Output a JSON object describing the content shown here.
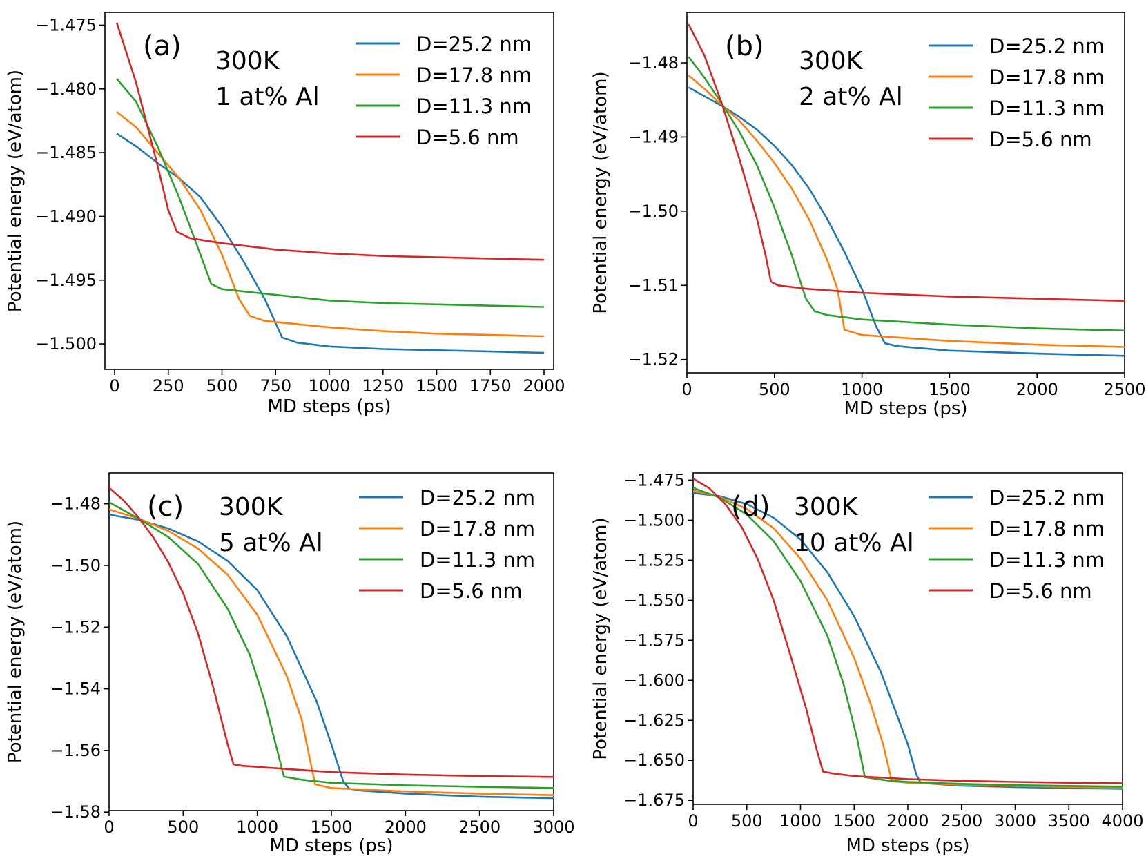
{
  "colors": {
    "D=25.2 nm": "#1f77b4",
    "D=17.8 nm": "#ff7f0e",
    "D=11.3 nm": "#2ca02c",
    "D=5.6 nm": "#d62728"
  },
  "chart_data": [
    {
      "type": "line",
      "panel_label": "(a)",
      "annotation": [
        "300K",
        "1 at% Al"
      ],
      "xlabel": "MD steps (ps)",
      "ylabel": "Potential energy (eV/atom)",
      "xlim": [
        -45,
        2045
      ],
      "ylim": [
        -1.502,
        -1.474
      ],
      "xticks": [
        0,
        250,
        500,
        750,
        1000,
        1250,
        1500,
        1750,
        2000
      ],
      "xtick_labels": [
        "0",
        "250",
        "500",
        "750",
        "1000",
        "1250",
        "1500",
        "1750",
        "2000"
      ],
      "yticks": [
        -1.475,
        -1.48,
        -1.485,
        -1.49,
        -1.495,
        -1.5
      ],
      "ytick_labels": [
        "−1.475",
        "−1.480",
        "−1.485",
        "−1.490",
        "−1.495",
        "−1.500"
      ],
      "legend": [
        "D=25.2 nm",
        "D=17.8 nm",
        "D=11.3 nm",
        "D=5.6 nm"
      ],
      "legend_position": "top-right",
      "series": [
        {
          "name": "D=25.2 nm",
          "color": "#1f77b4",
          "x": [
            10,
            100,
            200,
            300,
            400,
            500,
            600,
            700,
            780,
            850,
            1000,
            1250,
            1500,
            1750,
            2000
          ],
          "values": [
            -1.4835,
            -1.4845,
            -1.4858,
            -1.487,
            -1.4885,
            -1.4908,
            -1.4935,
            -1.4965,
            -1.4995,
            -1.4999,
            -1.5002,
            -1.5004,
            -1.5005,
            -1.5006,
            -1.5007
          ]
        },
        {
          "name": "D=17.8 nm",
          "color": "#ff7f0e",
          "x": [
            10,
            100,
            200,
            300,
            400,
            500,
            580,
            630,
            700,
            1000,
            1250,
            1500,
            1750,
            2000
          ],
          "values": [
            -1.4818,
            -1.483,
            -1.485,
            -1.487,
            -1.4895,
            -1.493,
            -1.4965,
            -1.4978,
            -1.4982,
            -1.4987,
            -1.499,
            -1.4992,
            -1.4993,
            -1.4994
          ]
        },
        {
          "name": "D=11.3 nm",
          "color": "#2ca02c",
          "x": [
            10,
            100,
            200,
            300,
            400,
            450,
            500,
            1000,
            1250,
            1500,
            1750,
            2000
          ],
          "values": [
            -1.4792,
            -1.481,
            -1.4845,
            -1.4885,
            -1.493,
            -1.4953,
            -1.4957,
            -1.4966,
            -1.4968,
            -1.4969,
            -1.497,
            -1.4971
          ]
        },
        {
          "name": "D=5.6 nm",
          "color": "#d62728",
          "x": [
            10,
            100,
            200,
            250,
            290,
            350,
            500,
            750,
            1000,
            1250,
            1500,
            1750,
            2000
          ],
          "values": [
            -1.4748,
            -1.4795,
            -1.486,
            -1.4895,
            -1.4912,
            -1.4917,
            -1.4921,
            -1.4926,
            -1.4929,
            -1.4931,
            -1.4932,
            -1.4933,
            -1.4934
          ]
        }
      ]
    },
    {
      "type": "line",
      "panel_label": "(b)",
      "annotation": [
        "300K",
        "2 at% Al"
      ],
      "xlabel": "MD steps (ps)",
      "ylabel": "Potential energy (eV/atom)",
      "xlim": [
        0,
        2500
      ],
      "ylim": [
        -1.5218,
        -1.4732
      ],
      "xticks": [
        0,
        500,
        1000,
        1500,
        2000,
        2500
      ],
      "xtick_labels": [
        "0",
        "500",
        "1000",
        "1500",
        "2000",
        "2500"
      ],
      "yticks": [
        -1.48,
        -1.49,
        -1.5,
        -1.51,
        -1.52
      ],
      "ytick_labels": [
        "−1.48",
        "−1.49",
        "−1.50",
        "−1.51",
        "−1.52"
      ],
      "legend": [
        "D=25.2 nm",
        "D=17.8 nm",
        "D=11.3 nm",
        "D=5.6 nm"
      ],
      "legend_position": "top-right",
      "series": [
        {
          "name": "D=25.2 nm",
          "color": "#1f77b4",
          "x": [
            10,
            100,
            200,
            300,
            400,
            500,
            600,
            700,
            800,
            900,
            1000,
            1080,
            1130,
            1200,
            1500,
            2000,
            2500
          ],
          "values": [
            -1.4833,
            -1.4845,
            -1.4858,
            -1.4873,
            -1.489,
            -1.4912,
            -1.4938,
            -1.497,
            -1.501,
            -1.5055,
            -1.5105,
            -1.5155,
            -1.5178,
            -1.5182,
            -1.5188,
            -1.5192,
            -1.5195
          ]
        },
        {
          "name": "D=17.8 nm",
          "color": "#ff7f0e",
          "x": [
            10,
            100,
            200,
            300,
            400,
            500,
            600,
            700,
            800,
            860,
            900,
            1000,
            1500,
            2000,
            2500
          ],
          "values": [
            -1.4817,
            -1.4835,
            -1.4857,
            -1.4878,
            -1.4905,
            -1.4935,
            -1.497,
            -1.5012,
            -1.5065,
            -1.5105,
            -1.516,
            -1.5167,
            -1.5175,
            -1.518,
            -1.5183
          ]
        },
        {
          "name": "D=11.3 nm",
          "color": "#2ca02c",
          "x": [
            10,
            100,
            200,
            300,
            400,
            500,
            600,
            680,
            730,
            800,
            1000,
            1500,
            2000,
            2500
          ],
          "values": [
            -1.4792,
            -1.482,
            -1.4855,
            -1.4893,
            -1.4938,
            -1.4995,
            -1.506,
            -1.5118,
            -1.5135,
            -1.514,
            -1.5146,
            -1.5153,
            -1.5158,
            -1.5161
          ]
        },
        {
          "name": "D=5.6 nm",
          "color": "#d62728",
          "x": [
            10,
            100,
            200,
            300,
            400,
            450,
            480,
            520,
            700,
            1000,
            1500,
            2000,
            2500
          ],
          "values": [
            -1.4748,
            -1.479,
            -1.4855,
            -1.493,
            -1.501,
            -1.506,
            -1.5095,
            -1.51,
            -1.5105,
            -1.511,
            -1.5115,
            -1.5118,
            -1.5121
          ]
        }
      ]
    },
    {
      "type": "line",
      "panel_label": "(c)",
      "annotation": [
        "300K",
        "5 at% Al"
      ],
      "xlabel": "MD steps (ps)",
      "ylabel": "Potential energy (eV/atom)",
      "xlim": [
        0,
        3000
      ],
      "ylim": [
        -1.5795,
        -1.47
      ],
      "xticks": [
        0,
        500,
        1000,
        1500,
        2000,
        2500,
        3000
      ],
      "xtick_labels": [
        "0",
        "500",
        "1000",
        "1500",
        "2000",
        "2500",
        "3000"
      ],
      "yticks": [
        -1.48,
        -1.5,
        -1.52,
        -1.54,
        -1.56,
        -1.58
      ],
      "ytick_labels": [
        "−1.48",
        "−1.50",
        "−1.52",
        "−1.54",
        "−1.56",
        "−1.58"
      ],
      "legend": [
        "D=25.2 nm",
        "D=17.8 nm",
        "D=11.3 nm",
        "D=5.6 nm"
      ],
      "legend_position": "top-right",
      "series": [
        {
          "name": "D=25.2 nm",
          "color": "#1f77b4",
          "x": [
            0,
            200,
            400,
            600,
            800,
            1000,
            1200,
            1400,
            1500,
            1580,
            1620,
            1700,
            2000,
            2500,
            3000
          ],
          "values": [
            -1.4835,
            -1.4852,
            -1.488,
            -1.4922,
            -1.4985,
            -1.508,
            -1.523,
            -1.544,
            -1.558,
            -1.57,
            -1.5724,
            -1.573,
            -1.574,
            -1.575,
            -1.5755
          ]
        },
        {
          "name": "D=17.8 nm",
          "color": "#ff7f0e",
          "x": [
            0,
            200,
            400,
            600,
            800,
            1000,
            1200,
            1300,
            1390,
            1500,
            2000,
            2500,
            3000
          ],
          "values": [
            -1.4818,
            -1.4848,
            -1.4888,
            -1.4945,
            -1.503,
            -1.516,
            -1.536,
            -1.55,
            -1.571,
            -1.5722,
            -1.5733,
            -1.574,
            -1.5745
          ]
        },
        {
          "name": "D=11.3 nm",
          "color": "#2ca02c",
          "x": [
            0,
            200,
            400,
            600,
            800,
            950,
            1050,
            1180,
            1300,
            1500,
            2000,
            2500,
            3000
          ],
          "values": [
            -1.4795,
            -1.4848,
            -1.4908,
            -1.4995,
            -1.514,
            -1.529,
            -1.544,
            -1.5685,
            -1.5695,
            -1.5705,
            -1.5713,
            -1.5718,
            -1.5722
          ]
        },
        {
          "name": "D=5.6 nm",
          "color": "#d62728",
          "x": [
            0,
            100,
            200,
            300,
            400,
            500,
            600,
            700,
            800,
            840,
            900,
            1500,
            2000,
            2500,
            3000
          ],
          "values": [
            -1.4748,
            -1.479,
            -1.4845,
            -1.491,
            -1.499,
            -1.509,
            -1.522,
            -1.539,
            -1.558,
            -1.5645,
            -1.565,
            -1.567,
            -1.5678,
            -1.5683,
            -1.5686
          ]
        }
      ]
    },
    {
      "type": "line",
      "panel_label": "(d)",
      "annotation": [
        "300K",
        "10 at% Al"
      ],
      "xlabel": "MD steps (ps)",
      "ylabel": "Potential energy (eV/atom)",
      "xlim": [
        0,
        4000
      ],
      "ylim": [
        -1.6775,
        -1.4705
      ],
      "xticks": [
        0,
        500,
        1000,
        1500,
        2000,
        2500,
        3000,
        3500,
        4000
      ],
      "xtick_labels": [
        "0",
        "500",
        "1000",
        "1500",
        "2000",
        "2500",
        "3000",
        "3500",
        "4000"
      ],
      "yticks": [
        -1.475,
        -1.5,
        -1.525,
        -1.55,
        -1.575,
        -1.6,
        -1.625,
        -1.65,
        -1.675
      ],
      "ytick_labels": [
        "−1.475",
        "−1.500",
        "−1.525",
        "−1.550",
        "−1.575",
        "−1.600",
        "−1.625",
        "−1.650",
        "−1.675"
      ],
      "legend": [
        "D=25.2 nm",
        "D=17.8 nm",
        "D=11.3 nm",
        "D=5.6 nm"
      ],
      "legend_position": "top-right",
      "series": [
        {
          "name": "D=25.2 nm",
          "color": "#1f77b4",
          "x": [
            0,
            250,
            500,
            750,
            1000,
            1250,
            1500,
            1750,
            1900,
            2000,
            2080,
            2120,
            2300,
            2500,
            3000,
            3500,
            4000
          ],
          "values": [
            -1.483,
            -1.485,
            -1.49,
            -1.4985,
            -1.512,
            -1.5325,
            -1.56,
            -1.595,
            -1.622,
            -1.64,
            -1.659,
            -1.664,
            -1.665,
            -1.6658,
            -1.6667,
            -1.6673,
            -1.6678
          ]
        },
        {
          "name": "D=17.8 nm",
          "color": "#ff7f0e",
          "x": [
            0,
            250,
            500,
            750,
            1000,
            1250,
            1500,
            1650,
            1770,
            1850,
            2000,
            2500,
            3000,
            3500,
            4000
          ],
          "values": [
            -1.4815,
            -1.4855,
            -1.493,
            -1.505,
            -1.524,
            -1.55,
            -1.586,
            -1.614,
            -1.64,
            -1.663,
            -1.664,
            -1.6652,
            -1.666,
            -1.6666,
            -1.667
          ]
        },
        {
          "name": "D=11.3 nm",
          "color": "#2ca02c",
          "x": [
            0,
            250,
            500,
            750,
            1000,
            1250,
            1400,
            1530,
            1600,
            1800,
            2000,
            2500,
            3000,
            3500,
            4000
          ],
          "values": [
            -1.4798,
            -1.486,
            -1.4965,
            -1.513,
            -1.538,
            -1.572,
            -1.602,
            -1.637,
            -1.6605,
            -1.6625,
            -1.6635,
            -1.6647,
            -1.6655,
            -1.666,
            -1.6664
          ]
        },
        {
          "name": "D=5.6 nm",
          "color": "#d62728",
          "x": [
            0,
            150,
            300,
            450,
            600,
            750,
            900,
            1050,
            1150,
            1210,
            1300,
            1500,
            2000,
            2500,
            3000,
            3500,
            4000
          ],
          "values": [
            -1.474,
            -1.48,
            -1.49,
            -1.504,
            -1.524,
            -1.55,
            -1.583,
            -1.617,
            -1.643,
            -1.657,
            -1.6582,
            -1.6598,
            -1.6617,
            -1.6628,
            -1.6635,
            -1.664,
            -1.6643
          ]
        }
      ]
    }
  ]
}
